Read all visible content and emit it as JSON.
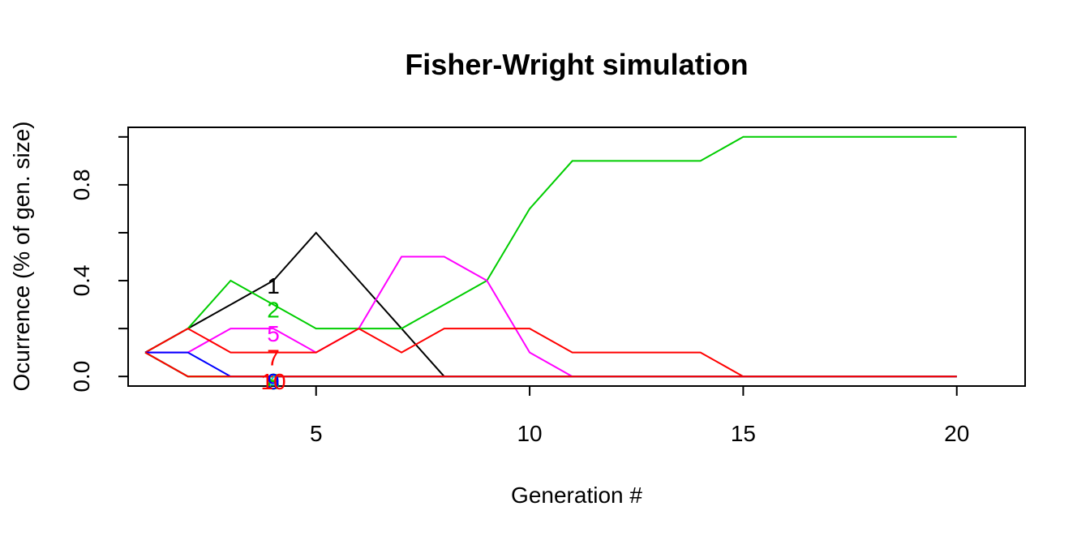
{
  "chart_data": {
    "type": "line",
    "title": "Fisher-Wright simulation",
    "xlabel": "Generation #",
    "ylabel": "Ocurrence (% of gen. size)",
    "xlim": [
      0.6,
      21.6
    ],
    "ylim": [
      -0.04,
      1.04
    ],
    "x_ticks": [
      5,
      10,
      15,
      20
    ],
    "y_ticks": [
      0.0,
      0.2,
      0.4,
      0.6,
      0.8,
      1.0
    ],
    "y_tick_labels": [
      "0.0",
      "",
      "0.4",
      "",
      "0.8",
      ""
    ],
    "x": [
      1,
      2,
      3,
      4,
      5,
      6,
      7,
      8,
      9,
      10,
      11,
      12,
      13,
      14,
      15,
      16,
      17,
      18,
      19,
      20
    ],
    "label_x": 4,
    "series": [
      {
        "label": "1",
        "color": "#000000",
        "values": [
          0.1,
          0.2,
          0.3,
          0.4,
          0.6,
          0.4,
          0.2,
          0.0,
          0,
          0,
          0,
          0,
          0,
          0,
          0,
          0,
          0,
          0,
          0,
          0
        ]
      },
      {
        "label": "2",
        "color": "#00CD00",
        "values": [
          0.1,
          0.2,
          0.4,
          0.3,
          0.2,
          0.2,
          0.2,
          0.3,
          0.4,
          0.7,
          0.9,
          0.9,
          0.9,
          0.9,
          1.0,
          1.0,
          1.0,
          1.0,
          1.0,
          1.0
        ]
      },
      {
        "label": "3",
        "color": "#0000FF",
        "values": [
          0.1,
          0.0,
          0,
          0,
          0,
          0,
          0,
          0,
          0,
          0,
          0,
          0,
          0,
          0,
          0,
          0,
          0,
          0,
          0,
          0
        ]
      },
      {
        "label": "4",
        "color": "#00CDCD",
        "values": [
          0.1,
          0.0,
          0,
          0,
          0,
          0,
          0,
          0,
          0,
          0,
          0,
          0,
          0,
          0,
          0,
          0,
          0,
          0,
          0,
          0
        ]
      },
      {
        "label": "5",
        "color": "#FF00FF",
        "values": [
          0.1,
          0.1,
          0.2,
          0.2,
          0.1,
          0.2,
          0.5,
          0.5,
          0.4,
          0.1,
          0.0,
          0,
          0,
          0,
          0,
          0,
          0,
          0,
          0,
          0
        ]
      },
      {
        "label": "6",
        "color": "#CDCD00",
        "values": [
          0.1,
          0.0,
          0,
          0,
          0,
          0,
          0,
          0,
          0,
          0,
          0,
          0,
          0,
          0,
          0,
          0,
          0,
          0,
          0,
          0
        ]
      },
      {
        "label": "7",
        "color": "#FF0000",
        "values": [
          0.1,
          0.2,
          0.1,
          0.1,
          0.1,
          0.2,
          0.1,
          0.2,
          0.2,
          0.2,
          0.1,
          0.1,
          0.1,
          0.1,
          0.0,
          0,
          0,
          0,
          0,
          0
        ]
      },
      {
        "label": "8",
        "color": "#00CD00",
        "values": [
          0.1,
          0.0,
          0,
          0,
          0,
          0,
          0,
          0,
          0,
          0,
          0,
          0,
          0,
          0,
          0,
          0,
          0,
          0,
          0,
          0
        ]
      },
      {
        "label": "9",
        "color": "#0000FF",
        "values": [
          0.1,
          0.1,
          0.0,
          0,
          0,
          0,
          0,
          0,
          0,
          0,
          0,
          0,
          0,
          0,
          0,
          0,
          0,
          0,
          0,
          0
        ]
      },
      {
        "label": "10",
        "color": "#FF0000",
        "values": [
          0.1,
          0.0,
          0,
          0,
          0,
          0,
          0,
          0,
          0,
          0,
          0,
          0,
          0,
          0,
          0,
          0,
          0,
          0,
          0,
          0
        ]
      }
    ]
  }
}
